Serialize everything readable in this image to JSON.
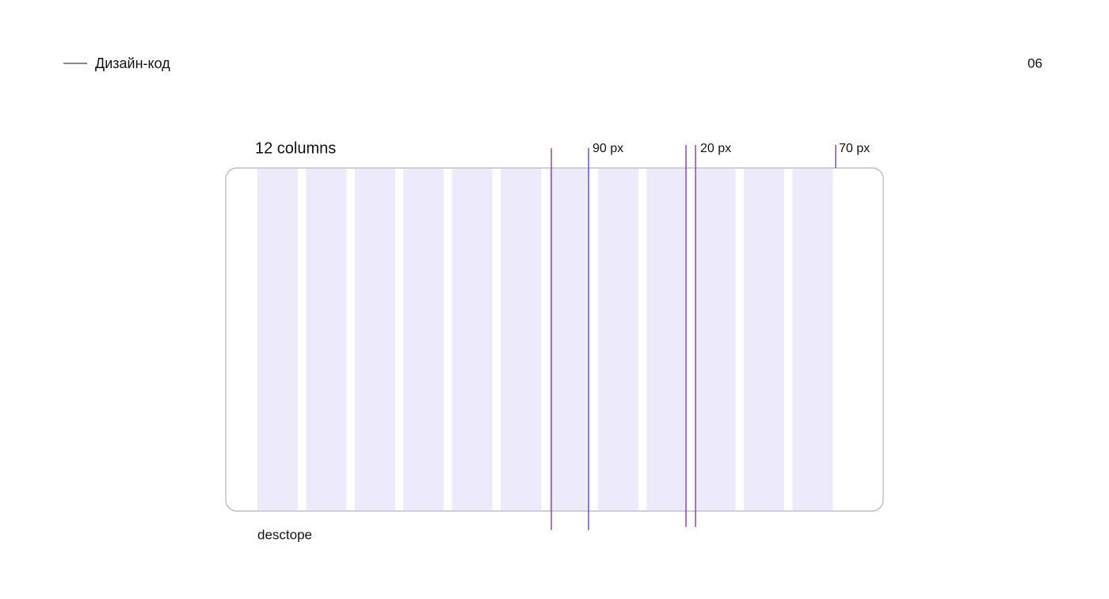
{
  "header": {
    "title": "Дизайн-код",
    "page": "06"
  },
  "diagram": {
    "title": "12 columns",
    "labels": [
      "90 px",
      "20 px",
      "70 px"
    ],
    "caption": "desctope"
  }
}
